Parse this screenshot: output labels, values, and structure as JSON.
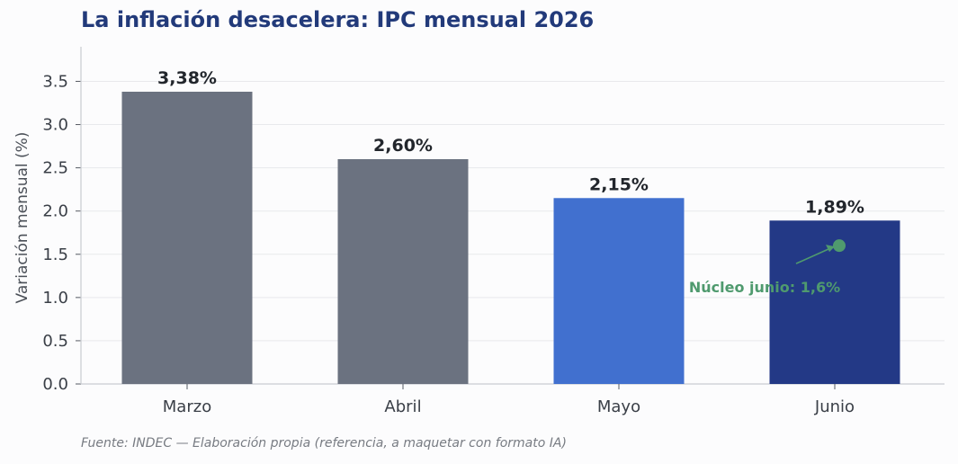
{
  "chart_data": {
    "type": "bar",
    "title": "La inflación desacelera: IPC mensual 2026",
    "xlabel": "",
    "ylabel": "Variación mensual (%)",
    "categories": [
      "Marzo",
      "Abril",
      "Mayo",
      "Junio"
    ],
    "values": [
      3.38,
      2.6,
      2.15,
      1.89
    ],
    "value_labels": [
      "3,38%",
      "2,60%",
      "2,15%",
      "1,89%"
    ],
    "bar_colors": [
      "#6b7280",
      "#6b7280",
      "#4170cf",
      "#233986"
    ],
    "ylim": [
      0,
      3.9
    ],
    "yticks": [
      0.0,
      0.5,
      1.0,
      1.5,
      2.0,
      2.5,
      3.0,
      3.5
    ],
    "ytick_labels": [
      "0.0",
      "0.5",
      "1.0",
      "1.5",
      "2.0",
      "2.5",
      "3.0",
      "3.5"
    ],
    "grid": true,
    "annotation": {
      "text": "Núcleo junio: 1,6%",
      "category": "Junio",
      "value": 1.6,
      "color": "#4f9a6e"
    }
  },
  "source": "Fuente: INDEC — Elaboración propia (referencia, a maquetar con formato IA)"
}
